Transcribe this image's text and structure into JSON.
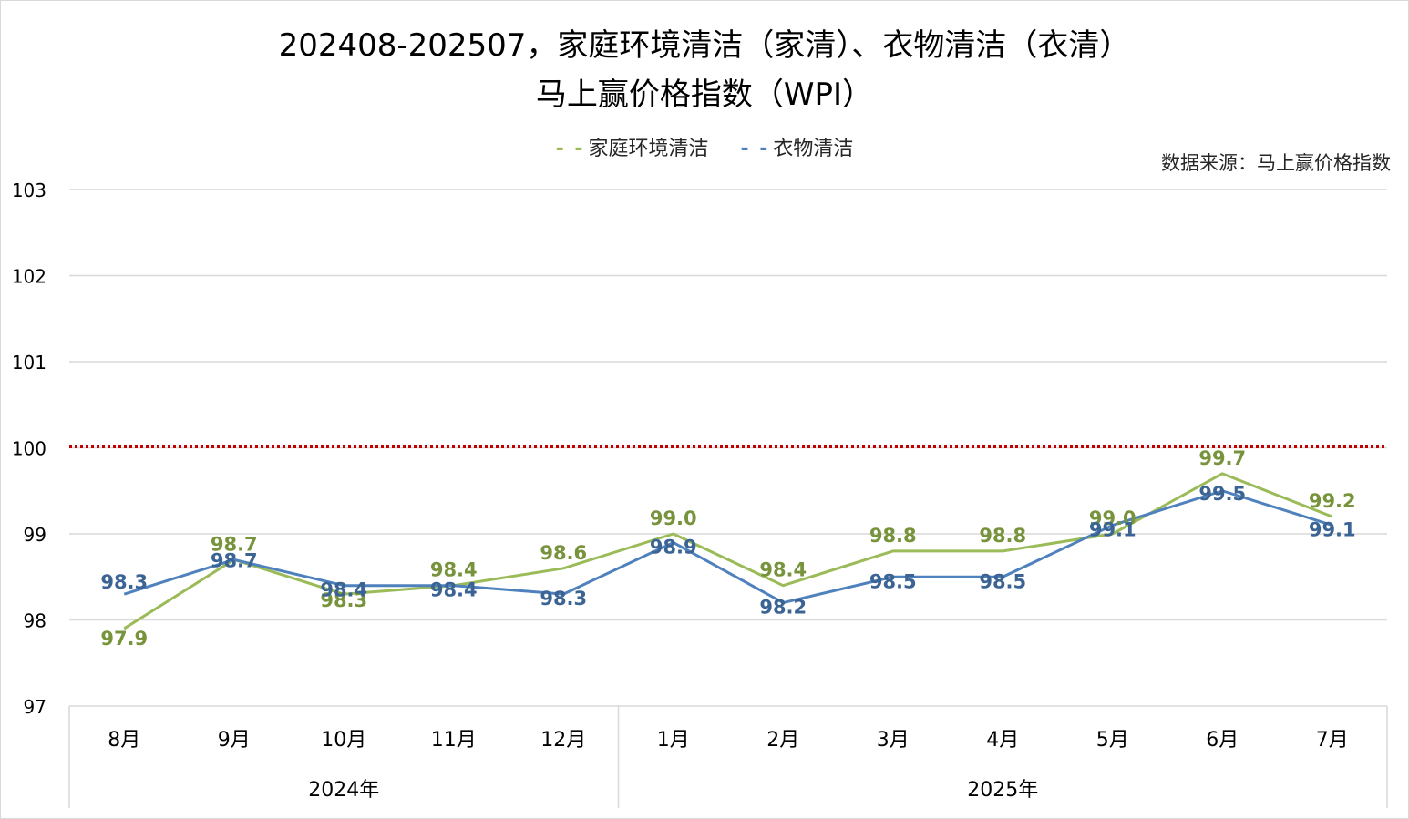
{
  "title_line1": "202408-202507，家庭环境清洁（家清）、衣物清洁（衣清）",
  "title_line2": "马上赢价格指数（WPI）",
  "source_note": "数据来源：马上赢价格指数",
  "colors": {
    "series_home": "#9bbb59",
    "series_home_label": "#77933c",
    "series_clothes": "#4f81bd",
    "series_clothes_label": "#3b6494",
    "reference_line": "#c00000",
    "grid": "#d9d9d9"
  },
  "chart_data": {
    "type": "line",
    "categories": [
      "8月",
      "9月",
      "10月",
      "11月",
      "12月",
      "1月",
      "2月",
      "3月",
      "4月",
      "5月",
      "6月",
      "7月"
    ],
    "category_groups": [
      {
        "label": "2024年",
        "start": 0,
        "end": 4
      },
      {
        "label": "2025年",
        "start": 5,
        "end": 11
      }
    ],
    "series": [
      {
        "name": "家庭环境清洁",
        "values": [
          97.9,
          98.7,
          98.3,
          98.4,
          98.6,
          99.0,
          98.4,
          98.8,
          98.8,
          99.0,
          99.7,
          99.2
        ],
        "labels": [
          "97.9",
          "98.7",
          "98.3",
          "98.4",
          "98.6",
          "99.0",
          "98.4",
          "98.8",
          "98.8",
          "99.0",
          "99.7",
          "99.2"
        ]
      },
      {
        "name": "衣物清洁",
        "values": [
          98.3,
          98.7,
          98.4,
          98.4,
          98.3,
          98.9,
          98.2,
          98.5,
          98.5,
          99.1,
          99.5,
          99.1
        ],
        "labels": [
          "98.3",
          "98.7",
          "98.4",
          "98.4",
          "98.3",
          "98.9",
          "98.2",
          "98.5",
          "98.5",
          "99.1",
          "99.5",
          "99.1"
        ]
      }
    ],
    "yticks": [
      "97",
      "98",
      "99",
      "100",
      "101",
      "102",
      "103"
    ],
    "ylim": [
      97,
      103
    ],
    "reference_value": 100,
    "grid": true,
    "legend_position": "top"
  }
}
